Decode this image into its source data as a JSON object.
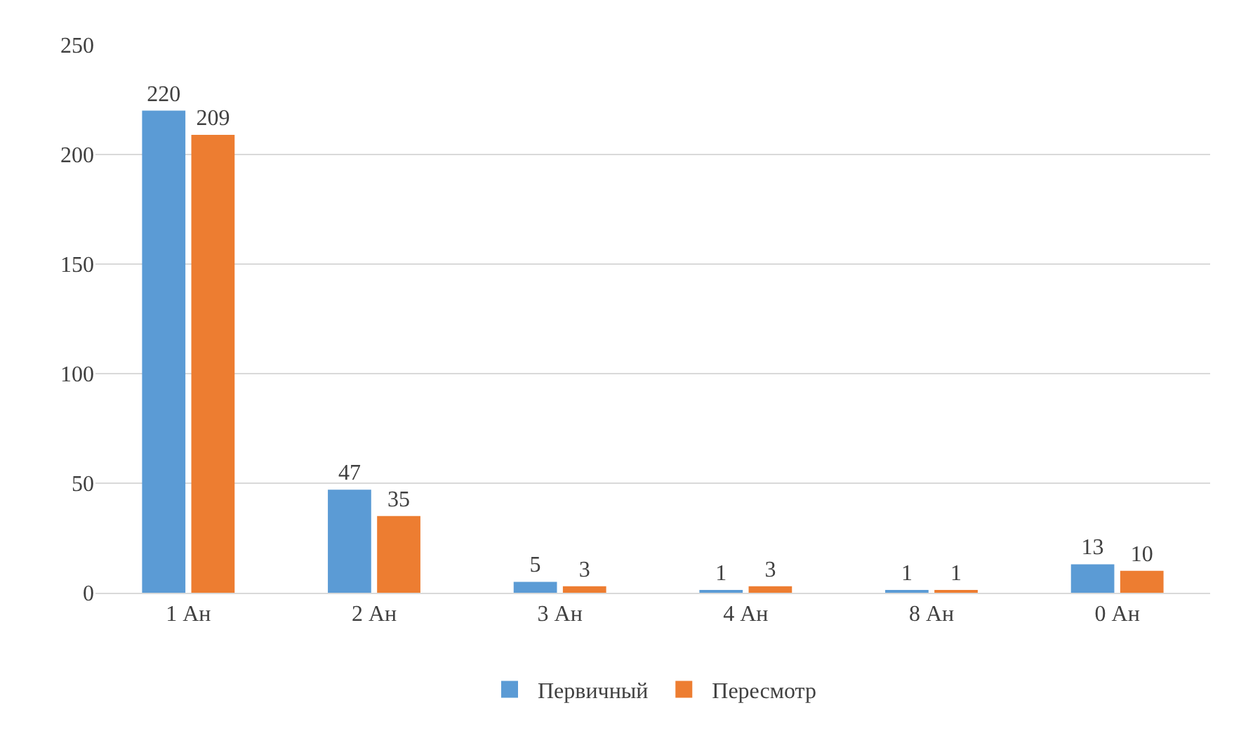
{
  "chart_data": {
    "type": "bar",
    "categories": [
      "1 Ан",
      "2 Ан",
      "3 Ан",
      "4 Ан",
      "8 Ан",
      "0 Ан"
    ],
    "series": [
      {
        "name": "Первичный",
        "color": "#5b9bd5",
        "values": [
          220,
          47,
          5,
          1,
          1,
          13
        ]
      },
      {
        "name": "Пересмотр",
        "color": "#ed7d31",
        "values": [
          209,
          35,
          3,
          3,
          1,
          10
        ]
      }
    ],
    "ylim": [
      0,
      250
    ],
    "yticks": [
      0,
      50,
      100,
      150,
      200,
      250
    ],
    "grid": "y",
    "legend": "bottom",
    "data_labels": true
  }
}
